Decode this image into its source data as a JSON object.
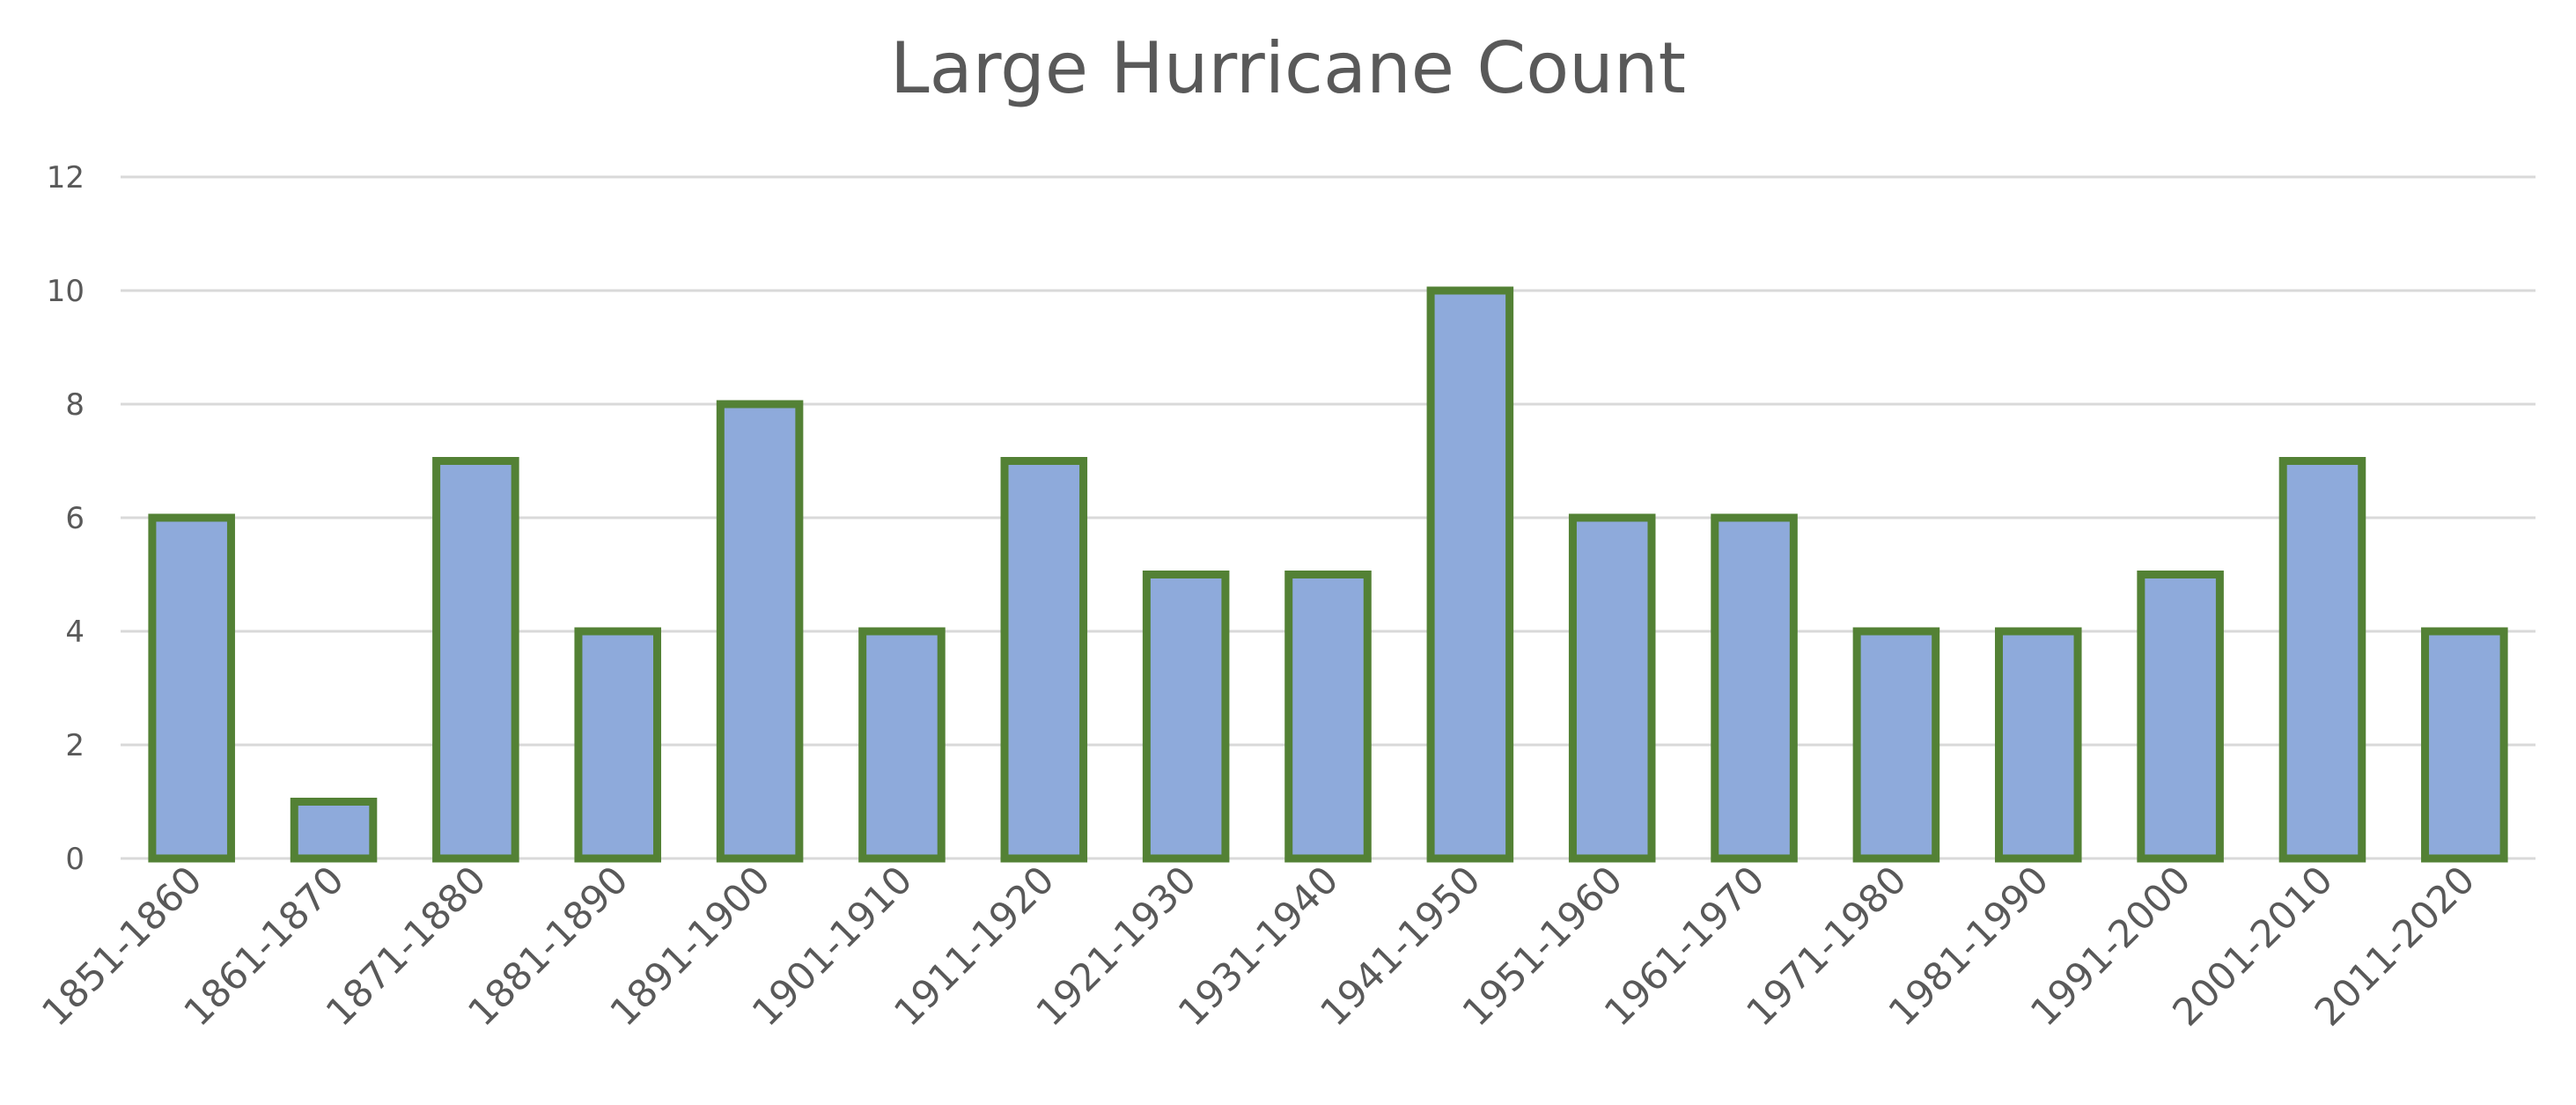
{
  "chart_data": {
    "type": "bar",
    "title": "Large Hurricane Count",
    "xlabel": "",
    "ylabel": "",
    "categories": [
      "1851-1860",
      "1861-1870",
      "1871-1880",
      "1881-1890",
      "1891-1900",
      "1901-1910",
      "1911-1920",
      "1921-1930",
      "1931-1940",
      "1941-1950",
      "1951-1960",
      "1961-1970",
      "1971-1980",
      "1981-1990",
      "1991-2000",
      "2001-2010",
      "2011-2020"
    ],
    "values": [
      6,
      1,
      7,
      4,
      8,
      4,
      7,
      5,
      5,
      10,
      6,
      6,
      4,
      4,
      5,
      7,
      4
    ],
    "ylim": [
      0,
      12
    ],
    "yticks": [
      0,
      2,
      4,
      6,
      8,
      10,
      12
    ],
    "grid": true,
    "legend": "none",
    "colors": {
      "bar_fill": "#8EAADB",
      "bar_border": "#538135",
      "grid": "#D9D9D9",
      "text": "#595959"
    }
  }
}
